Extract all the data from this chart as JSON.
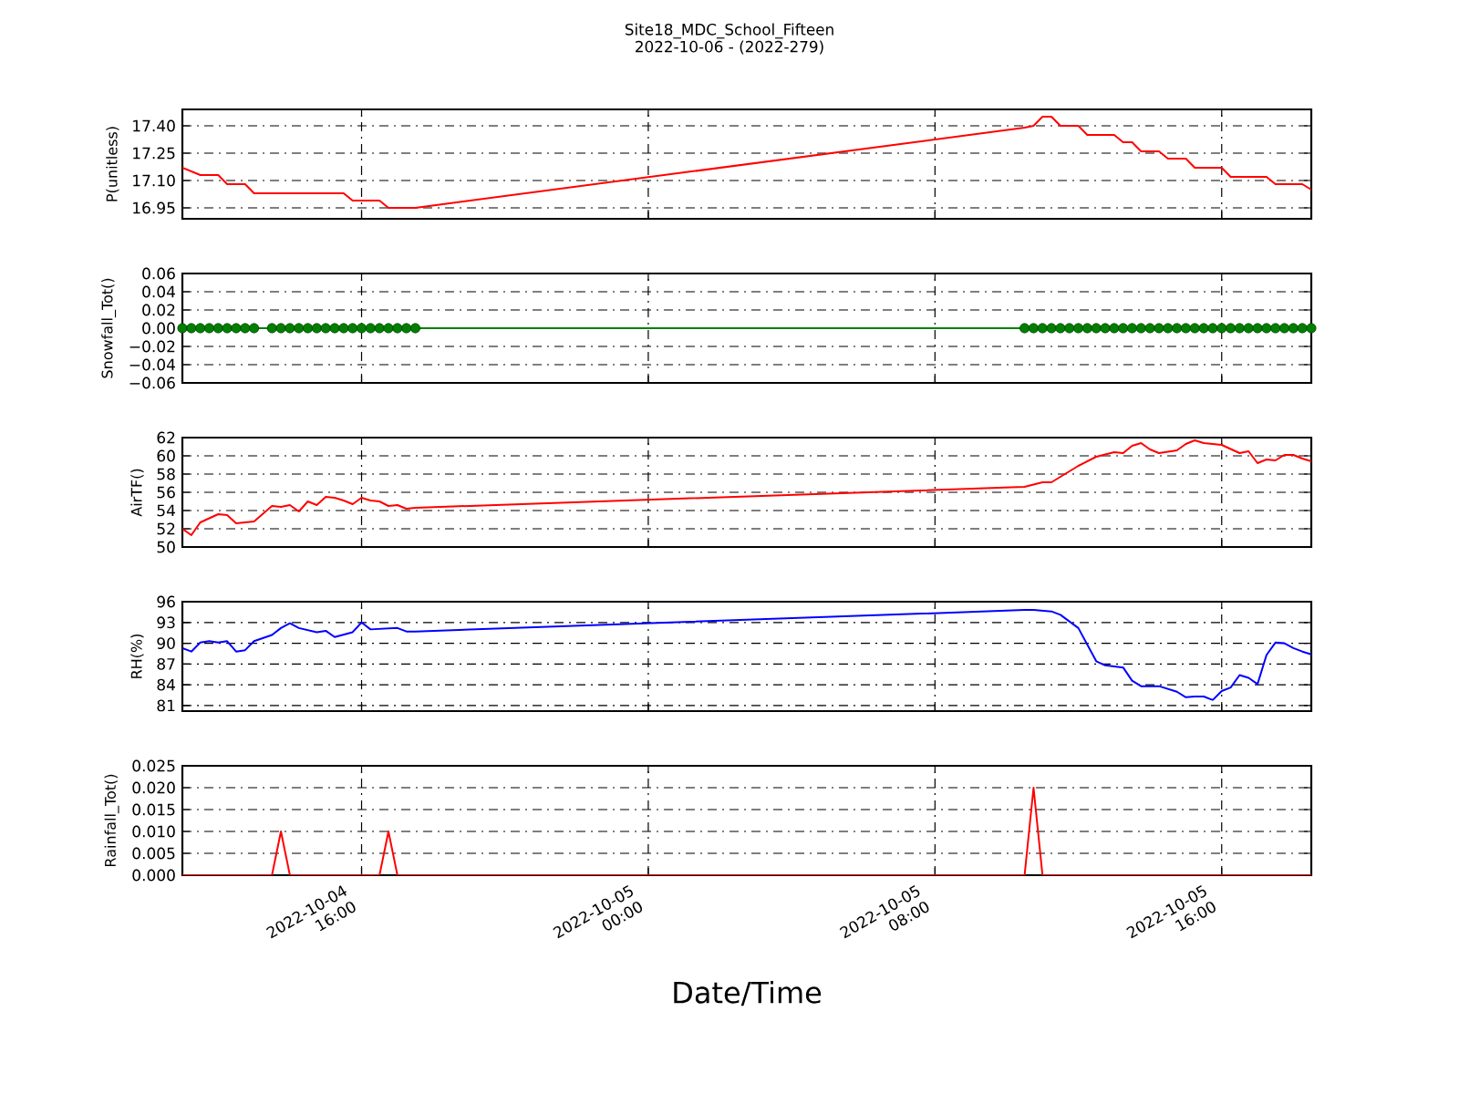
{
  "chart_data": [
    {
      "type": "line",
      "title": "Site18_MDC_School_Fifteen",
      "subtitle": "2022-10-06 - (2022-279)",
      "ylabel": "P(unitless)",
      "color": "#ff0000",
      "x": [
        "2022-10-04T11:00",
        "2022-10-04T11:30",
        "2022-10-04T12:00",
        "2022-10-04T12:15",
        "2022-10-04T12:45",
        "2022-10-04T13:00",
        "2022-10-04T15:30",
        "2022-10-04T15:45",
        "2022-10-04T16:30",
        "2022-10-04T16:45",
        "2022-10-04T17:30",
        "2022-10-05T10:30",
        "2022-10-05T10:45",
        "2022-10-05T11:00",
        "2022-10-05T11:15",
        "2022-10-05T11:30",
        "2022-10-05T12:00",
        "2022-10-05T12:15",
        "2022-10-05T13:00",
        "2022-10-05T13:15",
        "2022-10-05T13:30",
        "2022-10-05T13:45",
        "2022-10-05T14:15",
        "2022-10-05T14:30",
        "2022-10-05T15:00",
        "2022-10-05T15:15",
        "2022-10-05T16:00",
        "2022-10-05T16:15",
        "2022-10-05T17:15",
        "2022-10-05T17:30",
        "2022-10-05T18:15",
        "2022-10-05T18:30"
      ],
      "values": [
        17.17,
        17.13,
        17.13,
        17.08,
        17.08,
        17.03,
        17.03,
        16.99,
        16.99,
        16.95,
        16.95,
        17.39,
        17.4,
        17.45,
        17.45,
        17.4,
        17.4,
        17.35,
        17.35,
        17.31,
        17.31,
        17.26,
        17.26,
        17.22,
        17.22,
        17.17,
        17.17,
        17.12,
        17.12,
        17.08,
        17.08,
        17.05
      ],
      "xlim": [
        "2022-10-04T11:00",
        "2022-10-05T18:30"
      ],
      "ylim": [
        16.89,
        17.49
      ],
      "xticks": [
        {
          "value": "2022-10-04T16:00",
          "label": null
        },
        {
          "value": "2022-10-05T00:00",
          "label": null
        },
        {
          "value": "2022-10-05T08:00",
          "label": null
        },
        {
          "value": "2022-10-05T16:00",
          "label": null
        }
      ],
      "yticks": [
        16.95,
        {
          "value": 17.1,
          "label": "17.10"
        },
        17.25,
        {
          "value": 17.4,
          "label": "17.40"
        }
      ],
      "grid": true,
      "tick_labels": "y"
    },
    {
      "type": "line",
      "ylabel": "Snowfall_Tot()",
      "color": "#008000",
      "marker": "circle",
      "x": [
        "2022-10-04T11:00",
        "2022-10-04T11:15",
        "2022-10-04T11:30",
        "2022-10-04T11:45",
        "2022-10-04T12:00",
        "2022-10-04T12:15",
        "2022-10-04T12:30",
        "2022-10-04T12:45",
        "2022-10-04T13:00",
        "2022-10-04T13:30",
        "2022-10-04T13:45",
        "2022-10-04T14:00",
        "2022-10-04T14:15",
        "2022-10-04T14:30",
        "2022-10-04T14:45",
        "2022-10-04T15:00",
        "2022-10-04T15:15",
        "2022-10-04T15:30",
        "2022-10-04T15:45",
        "2022-10-04T16:00",
        "2022-10-04T16:15",
        "2022-10-04T16:30",
        "2022-10-04T16:45",
        "2022-10-04T17:00",
        "2022-10-04T17:15",
        "2022-10-04T17:30",
        "2022-10-05T10:30",
        "2022-10-05T10:45",
        "2022-10-05T11:00",
        "2022-10-05T11:15",
        "2022-10-05T11:30",
        "2022-10-05T11:45",
        "2022-10-05T12:00",
        "2022-10-05T12:15",
        "2022-10-05T12:30",
        "2022-10-05T12:45",
        "2022-10-05T13:00",
        "2022-10-05T13:15",
        "2022-10-05T13:30",
        "2022-10-05T13:45",
        "2022-10-05T14:00",
        "2022-10-05T14:15",
        "2022-10-05T14:30",
        "2022-10-05T14:45",
        "2022-10-05T15:00",
        "2022-10-05T15:15",
        "2022-10-05T15:30",
        "2022-10-05T15:45",
        "2022-10-05T16:00",
        "2022-10-05T16:15",
        "2022-10-05T16:30",
        "2022-10-05T16:45",
        "2022-10-05T17:00",
        "2022-10-05T17:15",
        "2022-10-05T17:30",
        "2022-10-05T17:45",
        "2022-10-05T18:00",
        "2022-10-05T18:15",
        "2022-10-05T18:30"
      ],
      "values": [
        0,
        0,
        0,
        0,
        0,
        0,
        0,
        0,
        0,
        0,
        0,
        0,
        0,
        0,
        0,
        0,
        0,
        0,
        0,
        0,
        0,
        0,
        0,
        0,
        0,
        0,
        0,
        0,
        0,
        0,
        0,
        0,
        0,
        0,
        0,
        0,
        0,
        0,
        0,
        0,
        0,
        0,
        0,
        0,
        0,
        0,
        0,
        0,
        0,
        0,
        0,
        0,
        0,
        0,
        0,
        0,
        0,
        0,
        0
      ],
      "xlim": [
        "2022-10-04T11:00",
        "2022-10-05T18:30"
      ],
      "ylim": [
        -0.06,
        0.06
      ],
      "xticks": [
        {
          "value": "2022-10-04T16:00",
          "label": null
        },
        {
          "value": "2022-10-05T00:00",
          "label": null
        },
        {
          "value": "2022-10-05T08:00",
          "label": null
        },
        {
          "value": "2022-10-05T16:00",
          "label": null
        }
      ],
      "yticks": [
        {
          "value": -0.06,
          "label": "−0.06"
        },
        {
          "value": -0.04,
          "label": "−0.04"
        },
        {
          "value": -0.02,
          "label": "−0.02"
        },
        {
          "value": 0,
          "label": "0.00"
        },
        0.02,
        0.04,
        0.06
      ],
      "grid": true,
      "tick_labels": "y"
    },
    {
      "type": "line",
      "ylabel": "AirTF()",
      "color": "#ff0000",
      "x": [
        "2022-10-04T11:00",
        "2022-10-04T11:15",
        "2022-10-04T11:30",
        "2022-10-04T12:00",
        "2022-10-04T12:15",
        "2022-10-04T12:30",
        "2022-10-04T13:00",
        "2022-10-04T13:30",
        "2022-10-04T13:45",
        "2022-10-04T14:00",
        "2022-10-04T14:15",
        "2022-10-04T14:30",
        "2022-10-04T14:45",
        "2022-10-04T15:00",
        "2022-10-04T15:15",
        "2022-10-04T15:30",
        "2022-10-04T15:45",
        "2022-10-04T16:00",
        "2022-10-04T16:15",
        "2022-10-04T16:30",
        "2022-10-04T16:45",
        "2022-10-04T17:00",
        "2022-10-04T17:15",
        "2022-10-04T17:30",
        "2022-10-05T10:30",
        "2022-10-05T11:00",
        "2022-10-05T11:15",
        "2022-10-05T12:00",
        "2022-10-05T12:30",
        "2022-10-05T13:00",
        "2022-10-05T13:15",
        "2022-10-05T13:30",
        "2022-10-05T13:45",
        "2022-10-05T14:00",
        "2022-10-05T14:15",
        "2022-10-05T14:45",
        "2022-10-05T15:00",
        "2022-10-05T15:15",
        "2022-10-05T15:30",
        "2022-10-05T16:00",
        "2022-10-05T16:30",
        "2022-10-05T16:45",
        "2022-10-05T17:00",
        "2022-10-05T17:15",
        "2022-10-05T17:30",
        "2022-10-05T17:45",
        "2022-10-05T18:00",
        "2022-10-05T18:15",
        "2022-10-05T18:30"
      ],
      "values": [
        52.0,
        51.3,
        52.7,
        53.6,
        53.5,
        52.6,
        52.8,
        54.5,
        54.4,
        54.6,
        53.9,
        55.0,
        54.6,
        55.5,
        55.4,
        55.1,
        54.7,
        55.4,
        55.1,
        55.0,
        54.5,
        54.6,
        54.2,
        54.3,
        56.6,
        57.1,
        57.1,
        58.9,
        59.9,
        60.4,
        60.3,
        61.1,
        61.4,
        60.7,
        60.3,
        60.6,
        61.3,
        61.7,
        61.4,
        61.2,
        60.3,
        60.5,
        59.2,
        59.6,
        59.5,
        60.1,
        60.1,
        59.7,
        59.4
      ],
      "xlim": [
        "2022-10-04T11:00",
        "2022-10-05T18:30"
      ],
      "ylim": [
        50,
        62
      ],
      "xticks": [
        {
          "value": "2022-10-04T16:00",
          "label": null
        },
        {
          "value": "2022-10-05T00:00",
          "label": null
        },
        {
          "value": "2022-10-05T08:00",
          "label": null
        },
        {
          "value": "2022-10-05T16:00",
          "label": null
        }
      ],
      "yticks": [
        50,
        52,
        54,
        56,
        58,
        60,
        62
      ],
      "grid": true,
      "tick_labels": "y"
    },
    {
      "type": "line",
      "ylabel": "RH(%)",
      "color": "#0000ff",
      "x": [
        "2022-10-04T11:00",
        "2022-10-04T11:15",
        "2022-10-04T11:30",
        "2022-10-04T11:45",
        "2022-10-04T12:00",
        "2022-10-04T12:15",
        "2022-10-04T12:30",
        "2022-10-04T12:45",
        "2022-10-04T13:00",
        "2022-10-04T13:30",
        "2022-10-04T13:45",
        "2022-10-04T14:00",
        "2022-10-04T14:15",
        "2022-10-04T14:45",
        "2022-10-04T15:00",
        "2022-10-04T15:15",
        "2022-10-04T15:45",
        "2022-10-04T16:00",
        "2022-10-04T16:15",
        "2022-10-04T17:00",
        "2022-10-04T17:15",
        "2022-10-04T17:30",
        "2022-10-05T10:30",
        "2022-10-05T10:45",
        "2022-10-05T11:15",
        "2022-10-05T11:30",
        "2022-10-05T12:00",
        "2022-10-05T12:30",
        "2022-10-05T12:45",
        "2022-10-05T13:15",
        "2022-10-05T13:30",
        "2022-10-05T13:45",
        "2022-10-05T14:15",
        "2022-10-05T14:45",
        "2022-10-05T15:00",
        "2022-10-05T15:15",
        "2022-10-05T15:30",
        "2022-10-05T15:45",
        "2022-10-05T16:00",
        "2022-10-05T16:15",
        "2022-10-05T16:30",
        "2022-10-05T16:45",
        "2022-10-05T17:00",
        "2022-10-05T17:15",
        "2022-10-05T17:30",
        "2022-10-05T17:45",
        "2022-10-05T18:00",
        "2022-10-05T18:15",
        "2022-10-05T18:30"
      ],
      "values": [
        89.3,
        88.8,
        90.1,
        90.3,
        90.1,
        90.3,
        88.8,
        89.0,
        90.3,
        91.2,
        92.2,
        92.9,
        92.2,
        91.6,
        91.8,
        90.9,
        91.6,
        93.0,
        92.0,
        92.2,
        91.7,
        91.7,
        94.8,
        94.8,
        94.6,
        94.1,
        92.2,
        87.4,
        86.8,
        86.5,
        84.6,
        83.8,
        83.8,
        83.0,
        82.2,
        82.3,
        82.3,
        81.8,
        83.1,
        83.6,
        85.4,
        85.0,
        84.1,
        88.3,
        90.1,
        90.0,
        89.3,
        88.8,
        88.4
      ],
      "xlim": [
        "2022-10-04T11:00",
        "2022-10-05T18:30"
      ],
      "ylim": [
        80.2,
        96
      ],
      "xticks": [
        {
          "value": "2022-10-04T16:00",
          "label": null
        },
        {
          "value": "2022-10-05T00:00",
          "label": null
        },
        {
          "value": "2022-10-05T08:00",
          "label": null
        },
        {
          "value": "2022-10-05T16:00",
          "label": null
        }
      ],
      "yticks": [
        81,
        84,
        87,
        90,
        93,
        96
      ],
      "grid": true,
      "tick_labels": "y"
    },
    {
      "type": "line",
      "ylabel": "Rainfall_Tot()",
      "xlabel": "Date/Time",
      "color": "#ff0000",
      "x": [
        "2022-10-04T11:00",
        "2022-10-04T13:30",
        "2022-10-04T13:45",
        "2022-10-04T14:00",
        "2022-10-04T16:30",
        "2022-10-04T16:45",
        "2022-10-04T17:00",
        "2022-10-04T17:30",
        "2022-10-05T10:30",
        "2022-10-05T10:45",
        "2022-10-05T11:00",
        "2022-10-05T18:30"
      ],
      "values": [
        0,
        0,
        0.01,
        0,
        0,
        0.01,
        0,
        0,
        0,
        0.02,
        0,
        0
      ],
      "xlim": [
        "2022-10-04T11:00",
        "2022-10-05T18:30"
      ],
      "ylim": [
        0,
        0.025
      ],
      "xticks": [
        {
          "value": "2022-10-04T16:00",
          "label": "2022-10-04 16:00"
        },
        {
          "value": "2022-10-05T00:00",
          "label": "2022-10-05 00:00"
        },
        {
          "value": "2022-10-05T08:00",
          "label": "2022-10-05 08:00"
        },
        {
          "value": "2022-10-05T16:00",
          "label": "2022-10-05 16:00"
        }
      ],
      "yticks": [
        {
          "value": 0,
          "label": "0.000"
        },
        0.005,
        {
          "value": 0.01,
          "label": "0.010"
        },
        0.015,
        {
          "value": 0.02,
          "label": "0.020"
        },
        0.025
      ],
      "grid": true
    }
  ]
}
